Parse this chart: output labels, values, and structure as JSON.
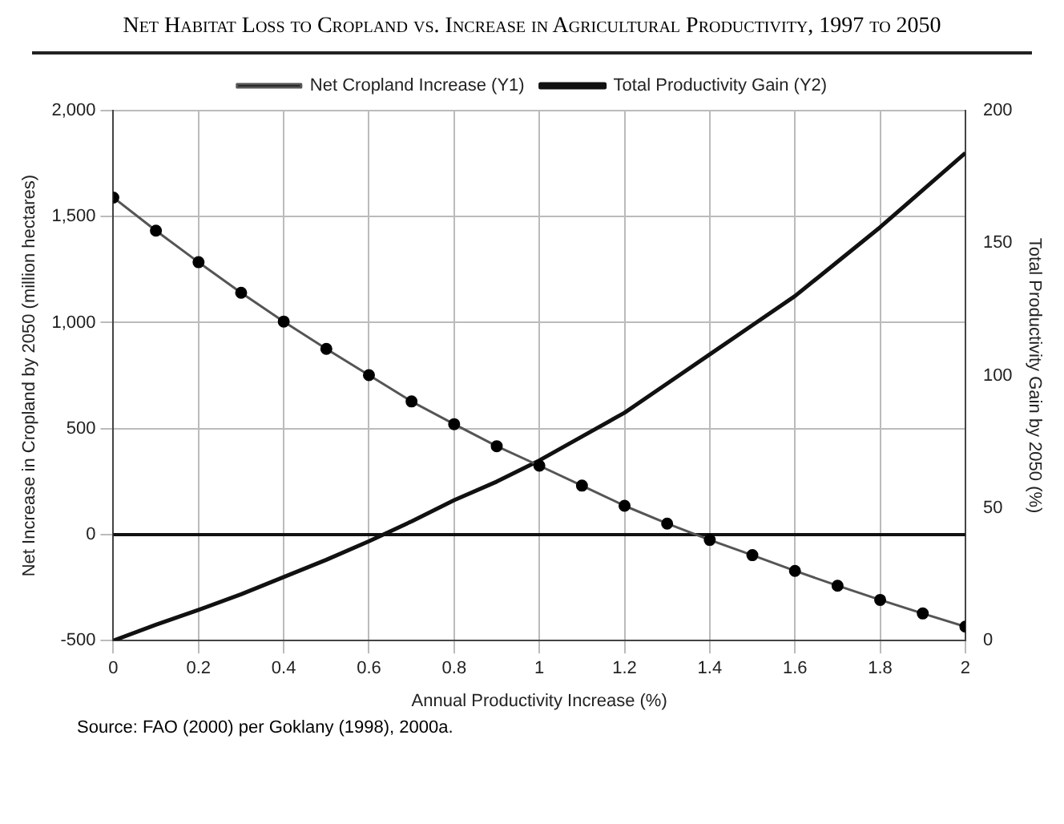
{
  "chart_data": {
    "type": "line",
    "title": "Net Habitat Loss to Cropland vs. Increase in Agricultural Productivity, 1997 to 2050",
    "xlabel": "Annual Productivity Increase (%)",
    "ylabel": "Net Increase in Cropland by 2050 (million hectares)",
    "y2label": "Total Productivity Gain by 2050 (%)",
    "annotations": [
      "Source: FAO (2000) per Goklany (1998), 2000a."
    ],
    "x": [
      0,
      0.1,
      0.2,
      0.3,
      0.4,
      0.5,
      0.6,
      0.7,
      0.8,
      0.9,
      1,
      1.1,
      1.2,
      1.3,
      1.4,
      1.5,
      1.6,
      1.7,
      1.8,
      1.9,
      2
    ],
    "series": [
      {
        "name": "Net Cropland Increase (Y1)",
        "color": "#555555",
        "marker": "circle",
        "values": [
          1590,
          1434,
          1285,
          1141,
          1005,
          876,
          752,
          628,
          521,
          417,
          325,
          231,
          136,
          52,
          -25,
          -97,
          -171,
          -241,
          -308,
          -372,
          -434
        ]
      },
      {
        "name": "Total Productivity Gain (Y2)",
        "color": "#111111",
        "marker": "none",
        "axis": "y2",
        "values": [
          0,
          6,
          11.6,
          17.5,
          24,
          30.5,
          37.5,
          45,
          53,
          60,
          68,
          77,
          86,
          97,
          108,
          119,
          130,
          143,
          156,
          170,
          184
        ]
      }
    ],
    "xlim": [
      0,
      2
    ],
    "xticks": [
      0,
      0.2,
      0.4,
      0.6,
      0.8,
      1,
      1.2,
      1.4,
      1.6,
      1.8,
      2
    ],
    "ylim": [
      -500,
      2000
    ],
    "yticks": [
      {
        "value": -500,
        "label": "-500"
      },
      0,
      500,
      {
        "value": 1000,
        "label": "1,000"
      },
      {
        "value": 1500,
        "label": "1,500"
      },
      {
        "value": 2000,
        "label": "2,000"
      }
    ],
    "y2lim": [
      0,
      200
    ],
    "y2ticks": [
      0,
      50,
      100,
      150,
      200
    ],
    "ref_lines": [
      {
        "axis": "y",
        "value": 0,
        "color": "#111111"
      }
    ],
    "grid": true,
    "legend": "top",
    "line_style": "solid"
  }
}
